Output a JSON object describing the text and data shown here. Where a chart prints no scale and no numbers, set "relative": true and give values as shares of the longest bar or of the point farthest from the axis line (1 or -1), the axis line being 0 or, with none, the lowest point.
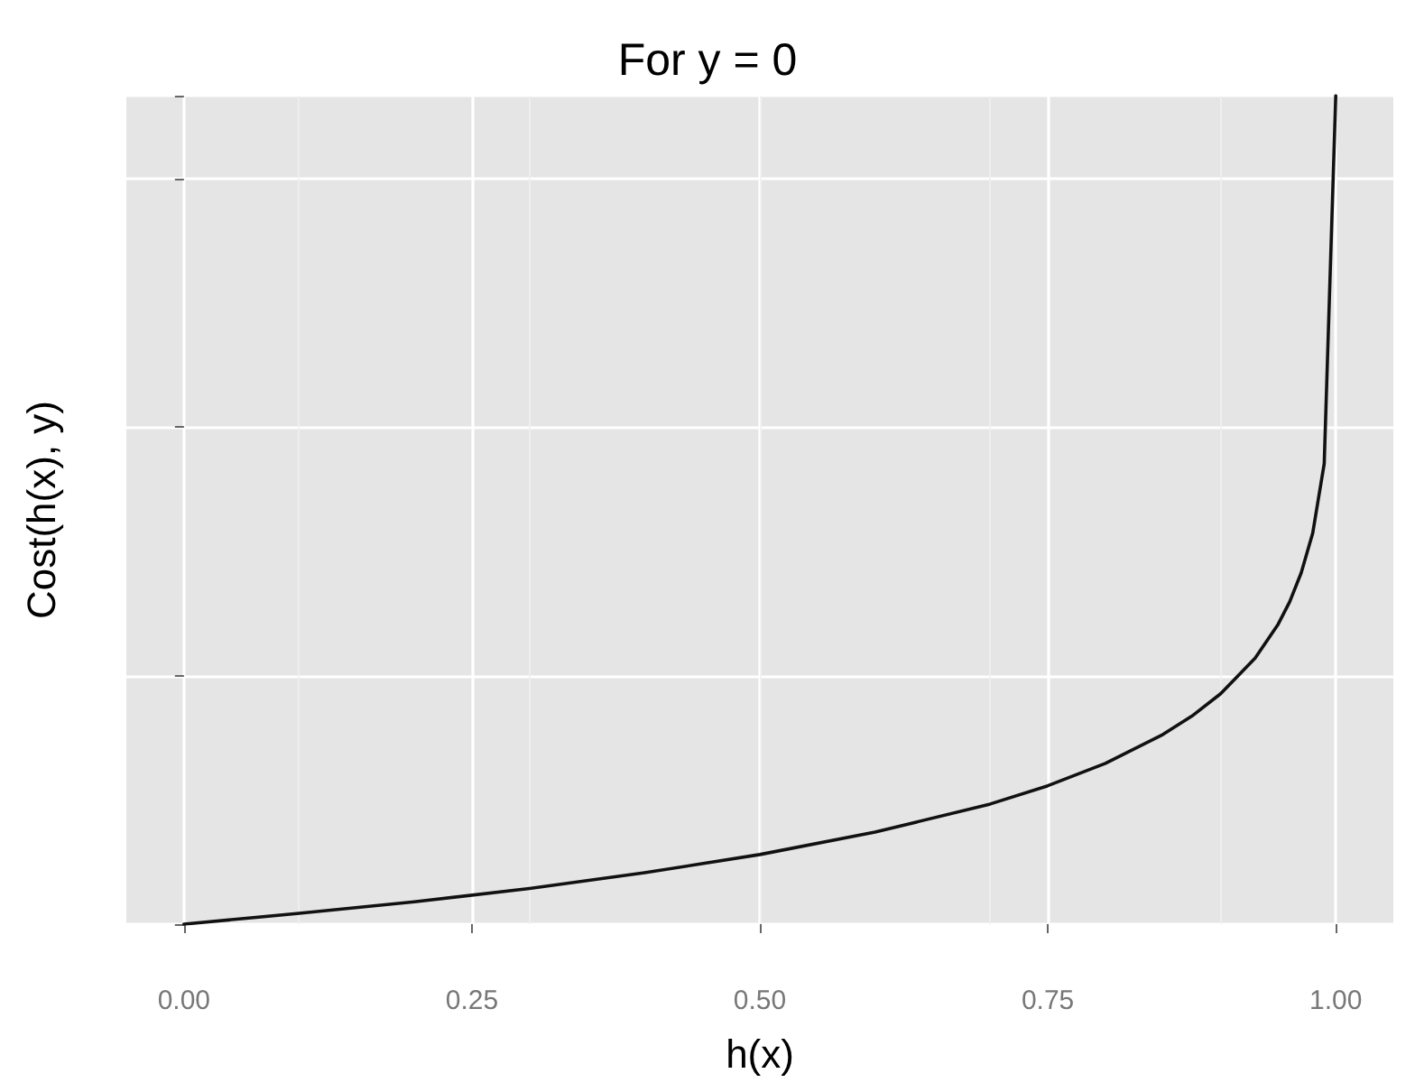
{
  "chart_data": {
    "type": "line",
    "title": "For y = 0",
    "xlabel": "h(x)",
    "ylabel": "Cost(h(x), y)",
    "relative": true,
    "grid": true,
    "marker": "none",
    "line_style": "solid",
    "xlim": [
      -0.05,
      1.05
    ],
    "xticks": [
      {
        "value": 0,
        "label": "0.00"
      },
      {
        "value": 0.25,
        "label": "0.25"
      },
      {
        "value": 0.5,
        "label": "0.50"
      },
      {
        "value": 0.75,
        "label": "0.75"
      },
      {
        "value": 1,
        "label": "1.00"
      }
    ],
    "series": [
      {
        "color": "#111111",
        "x": [
          0,
          0.1,
          0.2,
          0.3,
          0.4,
          0.5,
          0.6,
          0.7,
          0.75,
          0.8,
          0.85,
          0.875,
          0.9,
          0.93,
          0.95,
          0.96,
          0.97,
          0.98,
          0.99,
          1.0
        ],
        "values": [
          0,
          0.013,
          0.027,
          0.043,
          0.062,
          0.084,
          0.111,
          0.145,
          0.167,
          0.194,
          0.229,
          0.251,
          0.278,
          0.321,
          0.362,
          0.389,
          0.424,
          0.472,
          0.556,
          1
        ]
      }
    ]
  }
}
